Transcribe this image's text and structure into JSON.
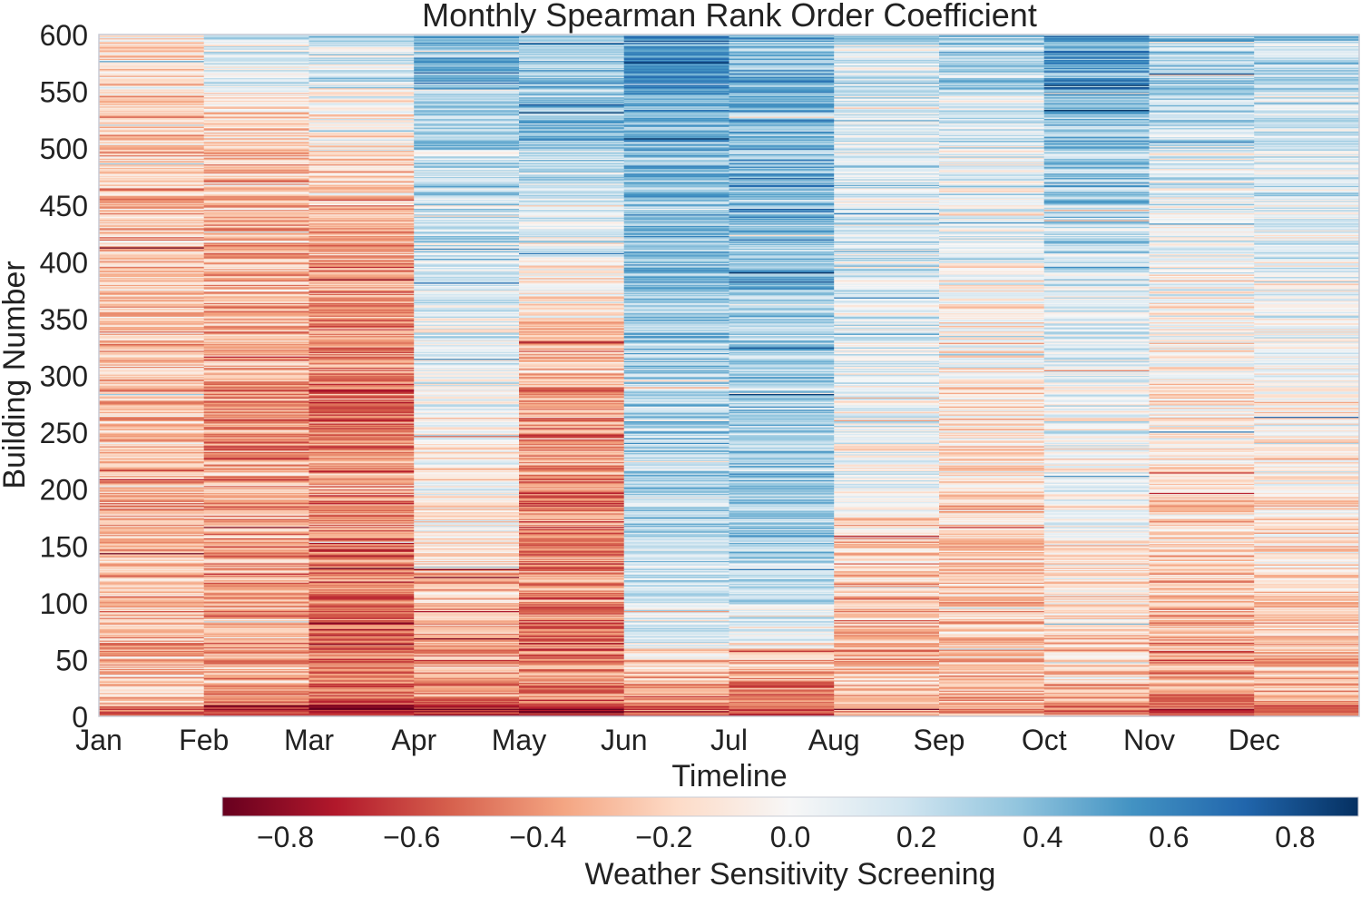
{
  "chart_data": {
    "type": "heatmap",
    "title": "Monthly Spearman Rank Order Coefficient",
    "xlabel": "Timeline",
    "ylabel": "Building Number",
    "x_categories": [
      "Jan",
      "Feb",
      "Mar",
      "Apr",
      "May",
      "Jun",
      "Jul",
      "Aug",
      "Sep",
      "Oct",
      "Nov",
      "Dec"
    ],
    "y_range": [
      0,
      600
    ],
    "y_ticks": [
      0,
      50,
      100,
      150,
      200,
      250,
      300,
      350,
      400,
      450,
      500,
      550,
      600
    ],
    "n_buildings": 600,
    "value_range": [
      -0.9,
      0.9
    ],
    "colormap": "RdBu",
    "colormap_stops": [
      "#67001f",
      "#b2182b",
      "#d6604d",
      "#f4a582",
      "#fddbc7",
      "#f7f7f7",
      "#d1e5f0",
      "#92c5de",
      "#4393c3",
      "#2166ac",
      "#053061"
    ],
    "colorbar": {
      "label": "Weather Sensitivity Screening",
      "ticks": [
        -0.8,
        -0.6,
        -0.4,
        -0.2,
        0.0,
        0.2,
        0.4,
        0.6,
        0.8
      ],
      "tick_labels": [
        "−0.8",
        "−0.6",
        "−0.4",
        "−0.2",
        "0.0",
        "0.2",
        "0.4",
        "0.6",
        "0.8"
      ],
      "orientation": "horizontal",
      "position": "bottom"
    },
    "monthly_mean_by_building_band": {
      "band_edges": [
        0,
        10,
        20,
        30,
        40,
        50,
        60,
        80,
        100,
        120,
        140,
        160,
        180,
        200,
        230,
        260,
        300,
        350,
        400,
        450,
        500,
        550,
        600
      ],
      "months": {
        "Jan": [
          -0.4,
          -0.3,
          -0.3,
          -0.3,
          -0.3,
          -0.3,
          -0.3,
          -0.3,
          -0.3,
          -0.3,
          -0.3,
          -0.3,
          -0.3,
          -0.3,
          -0.25,
          -0.25,
          -0.25,
          -0.25,
          -0.25,
          -0.25,
          -0.2,
          -0.15
        ],
        "Feb": [
          -0.7,
          -0.45,
          -0.4,
          -0.35,
          -0.3,
          -0.3,
          -0.4,
          -0.35,
          -0.35,
          -0.35,
          -0.35,
          -0.35,
          -0.35,
          -0.35,
          -0.4,
          -0.35,
          -0.3,
          -0.3,
          -0.3,
          -0.25,
          -0.15,
          0.1
        ],
        "Mar": [
          -0.75,
          -0.55,
          -0.5,
          -0.5,
          -0.5,
          -0.5,
          -0.55,
          -0.55,
          -0.5,
          -0.5,
          -0.5,
          -0.45,
          -0.45,
          -0.4,
          -0.45,
          -0.45,
          -0.45,
          -0.4,
          -0.35,
          -0.2,
          -0.05,
          0.15
        ],
        "Apr": [
          -0.7,
          -0.45,
          -0.4,
          -0.35,
          -0.35,
          -0.35,
          -0.35,
          -0.3,
          -0.25,
          -0.2,
          -0.15,
          -0.1,
          -0.05,
          -0.05,
          -0.05,
          0.05,
          0.05,
          0.1,
          0.15,
          0.2,
          0.3,
          0.4
        ],
        "May": [
          -0.75,
          -0.5,
          -0.45,
          -0.45,
          -0.45,
          -0.5,
          -0.5,
          -0.5,
          -0.45,
          -0.45,
          -0.45,
          -0.45,
          -0.45,
          -0.4,
          -0.4,
          -0.35,
          -0.3,
          -0.1,
          0.05,
          0.2,
          0.35,
          0.35
        ],
        "Jun": [
          -0.55,
          -0.45,
          -0.4,
          -0.35,
          -0.25,
          -0.1,
          0.05,
          0.1,
          0.15,
          0.15,
          0.2,
          0.2,
          0.2,
          0.25,
          0.25,
          0.25,
          0.3,
          0.35,
          0.35,
          0.4,
          0.45,
          0.55
        ],
        "Jul": [
          -0.55,
          -0.5,
          -0.45,
          -0.4,
          -0.3,
          -0.15,
          0.05,
          0.1,
          0.15,
          0.2,
          0.25,
          0.3,
          0.3,
          0.3,
          0.3,
          0.3,
          0.3,
          0.35,
          0.35,
          0.4,
          0.4,
          0.4
        ],
        "Aug": [
          -0.4,
          -0.35,
          -0.3,
          -0.3,
          -0.3,
          -0.3,
          -0.3,
          -0.3,
          -0.3,
          -0.25,
          -0.2,
          -0.15,
          -0.05,
          0.0,
          0.05,
          0.05,
          0.1,
          0.1,
          0.15,
          0.15,
          0.15,
          0.15
        ],
        "Sep": [
          -0.4,
          -0.35,
          -0.3,
          -0.3,
          -0.25,
          -0.25,
          -0.25,
          -0.25,
          -0.25,
          -0.2,
          -0.2,
          -0.2,
          -0.2,
          -0.15,
          -0.1,
          -0.1,
          -0.05,
          0.0,
          0.05,
          0.1,
          0.15,
          0.25
        ],
        "Oct": [
          -0.4,
          -0.35,
          -0.3,
          -0.3,
          -0.25,
          -0.2,
          -0.2,
          -0.15,
          -0.15,
          -0.1,
          -0.1,
          -0.05,
          0.0,
          0.0,
          0.05,
          0.05,
          0.1,
          0.15,
          0.2,
          0.3,
          0.35,
          0.45
        ],
        "Nov": [
          -0.55,
          -0.45,
          -0.4,
          -0.35,
          -0.35,
          -0.35,
          -0.3,
          -0.3,
          -0.3,
          -0.25,
          -0.25,
          -0.2,
          -0.2,
          -0.15,
          -0.1,
          -0.1,
          -0.05,
          0.0,
          0.05,
          0.1,
          0.2,
          0.3
        ],
        "Dec": [
          -0.45,
          -0.35,
          -0.3,
          -0.3,
          -0.3,
          -0.25,
          -0.25,
          -0.25,
          -0.2,
          -0.2,
          -0.15,
          -0.15,
          -0.1,
          -0.1,
          -0.05,
          -0.05,
          0.0,
          0.05,
          0.1,
          0.1,
          0.15,
          0.25
        ]
      }
    }
  }
}
